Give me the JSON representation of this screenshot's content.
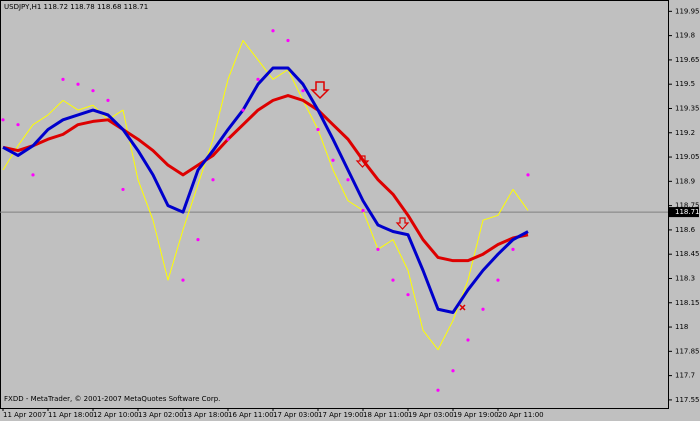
{
  "chart_data": {
    "type": "line",
    "title": "USDJPY,H1  118.72 118.78 118.68 118.71",
    "footer": "FXDD - MetaTrader, © 2001-2007 MetaQuotes Software Corp.",
    "categories": [
      "11 Apr 2007",
      null,
      null,
      "11 Apr 18:00",
      null,
      null,
      "12 Apr 10:00",
      null,
      null,
      "13 Apr 02:00",
      null,
      null,
      "13 Apr 18:00",
      null,
      null,
      "16 Apr 11:00",
      null,
      null,
      "17 Apr 03:00",
      null,
      null,
      "17 Apr 19:00",
      null,
      null,
      "18 Apr 11:00",
      null,
      null,
      "19 Apr 03:00",
      null,
      null,
      "19 Apr 19:00",
      null,
      null,
      "20 Apr 11:00",
      null,
      null
    ],
    "ylim": [
      117.5,
      120.02
    ],
    "yticks": [
      117.55,
      117.7,
      117.85,
      118.0,
      118.15,
      118.3,
      118.45,
      118.6,
      118.75,
      118.9,
      119.05,
      119.2,
      119.35,
      119.5,
      119.65,
      119.8,
      119.95
    ],
    "last_price": 118.71,
    "series": [
      {
        "color": "#ffff00",
        "width": 1,
        "marker": "line",
        "values": [
          118.97,
          119.12,
          119.25,
          119.31,
          119.4,
          119.34,
          119.37,
          119.28,
          119.34,
          118.91,
          118.66,
          118.29,
          118.6,
          118.88,
          119.16,
          119.53,
          119.77,
          119.65,
          119.53,
          119.59,
          119.4,
          119.22,
          118.97,
          118.78,
          118.72,
          118.48,
          118.54,
          118.35,
          117.98,
          117.86,
          118.04,
          118.29,
          118.66,
          118.69,
          118.85,
          118.72
        ]
      },
      {
        "color": "#dd0000",
        "width": 3,
        "marker": "line",
        "values": [
          119.11,
          119.09,
          119.12,
          119.16,
          119.19,
          119.25,
          119.27,
          119.28,
          119.22,
          119.16,
          119.09,
          119.0,
          118.94,
          119.0,
          119.06,
          119.16,
          119.25,
          119.34,
          119.4,
          119.43,
          119.4,
          119.34,
          119.25,
          119.16,
          119.03,
          118.91,
          118.82,
          118.69,
          118.54,
          118.43,
          118.41,
          118.41,
          118.45,
          118.51,
          118.55,
          118.57
        ]
      },
      {
        "color": "#0000cc",
        "width": 3,
        "marker": "line",
        "values": [
          119.11,
          119.06,
          119.12,
          119.22,
          119.28,
          119.31,
          119.34,
          119.31,
          119.22,
          119.09,
          118.94,
          118.75,
          118.71,
          118.97,
          119.09,
          119.22,
          119.34,
          119.5,
          119.6,
          119.6,
          119.5,
          119.34,
          119.16,
          118.97,
          118.78,
          118.63,
          118.59,
          118.57,
          118.35,
          118.11,
          118.09,
          118.23,
          118.35,
          118.45,
          118.54,
          118.59
        ]
      },
      {
        "color": "#ff00ff",
        "width": 2,
        "marker": "dots",
        "values": [
          119.28,
          119.25,
          118.94,
          null,
          119.53,
          119.5,
          119.46,
          119.4,
          118.85,
          null,
          null,
          null,
          118.29,
          118.54,
          118.91,
          119.16,
          119.34,
          119.53,
          119.83,
          119.77,
          119.46,
          119.22,
          119.03,
          118.91,
          118.72,
          118.48,
          118.29,
          118.2,
          null,
          117.61,
          117.73,
          117.92,
          118.11,
          118.29,
          118.48,
          118.94
        ]
      }
    ]
  }
}
